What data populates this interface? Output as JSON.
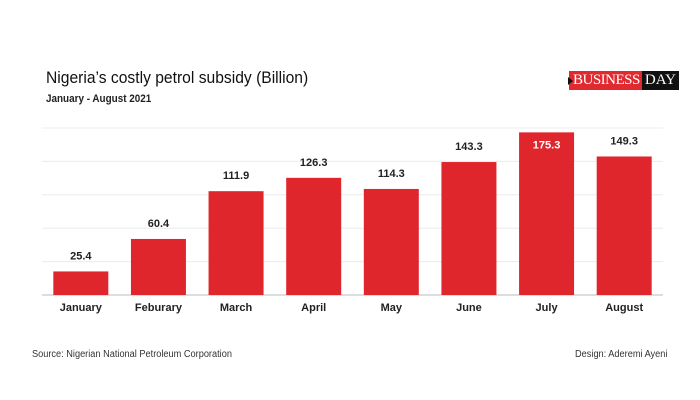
{
  "chart_data": {
    "type": "bar",
    "title": "Nigeria’s costly petrol subsidy (Billion)",
    "subtitle": "January - August 2021",
    "categories": [
      "January",
      "Feburary",
      "March",
      "April",
      "May",
      "June",
      "July",
      "August"
    ],
    "values": [
      25.4,
      60.4,
      111.9,
      126.3,
      114.3,
      143.3,
      175.3,
      149.3
    ],
    "value_labels": [
      "25.4",
      "60.4",
      "111.9",
      "126.3",
      "114.3",
      "143.3",
      "175.3",
      "149.3"
    ],
    "xlabel": "",
    "ylabel": "",
    "ylim": [
      0,
      180
    ],
    "grid": true,
    "bar_color": "#e0262d"
  },
  "logo": {
    "part1": "BUSINESS",
    "part2": "DAY"
  },
  "footer": {
    "source": "Source: Nigerian National Petroleum Corporation",
    "design": "Design: Aderemi Ayeni"
  }
}
